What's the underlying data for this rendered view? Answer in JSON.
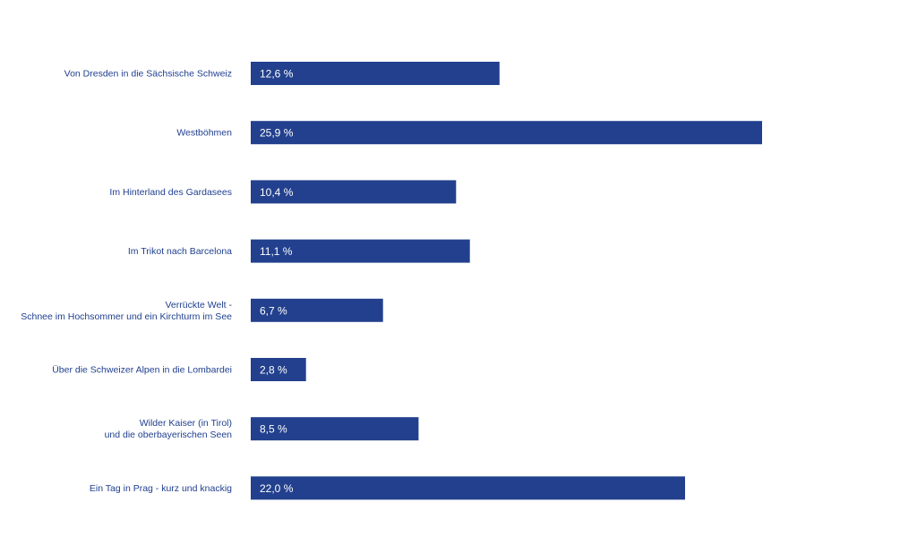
{
  "chart_data": {
    "type": "bar",
    "orientation": "horizontal",
    "categories": [
      [
        "Von Dresden in die Sächsische Schweiz"
      ],
      [
        "Westböhmen"
      ],
      [
        "Im Hinterland des Gardasees"
      ],
      [
        "Im Trikot nach Barcelona"
      ],
      [
        "Verrückte Welt -",
        "Schnee im Hochsommer und ein Kirchturm im See"
      ],
      [
        "Über die Schweizer Alpen in die Lombardei"
      ],
      [
        "Wilder Kaiser (in Tirol)",
        "und die oberbayerischen Seen"
      ],
      [
        "Ein Tag in Prag - kurz und knackig"
      ]
    ],
    "values": [
      12.6,
      25.9,
      10.4,
      11.1,
      6.7,
      2.8,
      8.5,
      22.0
    ],
    "value_labels": [
      "12,6 %",
      "25,9 %",
      "10,4 %",
      "11,1 %",
      "6,7 %",
      "2,8 %",
      "8,5 %",
      "22,0 %"
    ],
    "title": "",
    "xlabel": "",
    "ylabel": "",
    "xlim": [
      0,
      28
    ],
    "grid": false,
    "legend": "none",
    "colors": {
      "bar": "#22408d",
      "label": "#1f3f8f",
      "value_text": "#ffffff"
    }
  }
}
